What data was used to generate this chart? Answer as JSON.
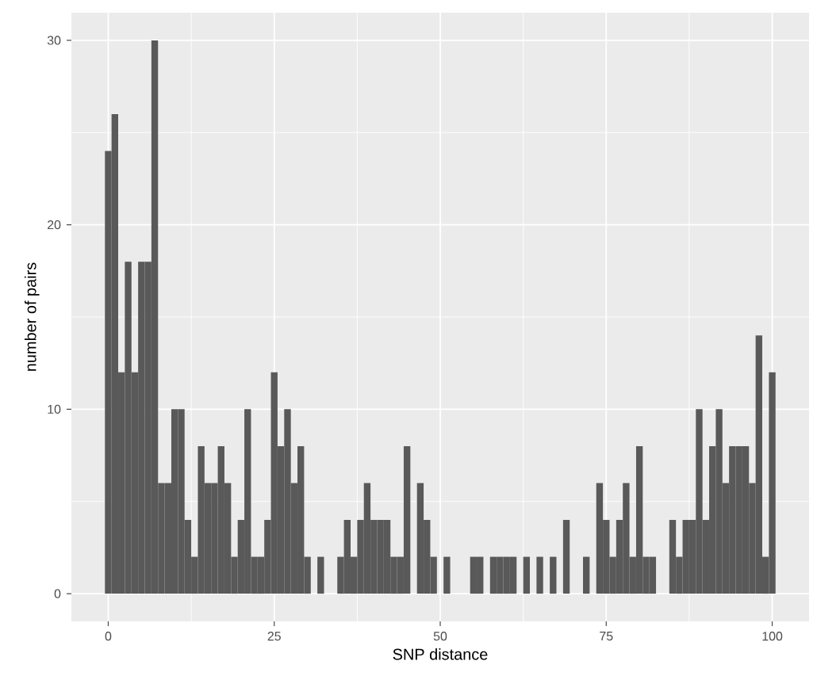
{
  "chart_data": {
    "type": "histogram",
    "xlabel": "SNP distance",
    "ylabel": "number of pairs",
    "bins": [
      -0.5,
      0.5,
      1.5,
      2.5,
      3.5,
      4.5,
      5.5,
      6.5,
      7.5,
      8.5,
      9.5,
      10.5,
      11.5,
      12.5,
      13.5,
      14.5,
      15.5,
      16.5,
      17.5,
      18.5,
      19.5,
      20.5,
      21.5,
      22.5,
      23.5,
      24.5,
      25.5,
      26.5,
      27.5,
      28.5,
      29.5,
      30.5,
      31.5,
      32.5,
      33.5,
      34.5,
      35.5,
      36.5,
      37.5,
      38.5,
      39.5,
      40.5,
      41.5,
      42.5,
      43.5,
      44.5,
      45.5,
      46.5,
      47.5,
      48.5,
      49.5,
      50.5,
      51.5,
      52.5,
      53.5,
      54.5,
      55.5,
      56.5,
      57.5,
      58.5,
      59.5,
      60.5,
      61.5,
      62.5,
      63.5,
      64.5,
      65.5,
      66.5,
      67.5,
      68.5,
      69.5,
      70.5,
      71.5,
      72.5,
      73.5,
      74.5,
      75.5,
      76.5,
      77.5,
      78.5,
      79.5,
      80.5,
      81.5,
      82.5,
      83.5,
      84.5,
      85.5,
      86.5,
      87.5,
      88.5,
      89.5,
      90.5,
      91.5,
      92.5,
      93.5,
      94.5,
      95.5,
      96.5,
      97.5,
      98.5,
      99.5,
      100.5
    ],
    "values": [
      24,
      26,
      12,
      18,
      12,
      18,
      18,
      30,
      6,
      6,
      10,
      10,
      4,
      2,
      8,
      6,
      6,
      8,
      6,
      2,
      4,
      10,
      2,
      2,
      4,
      12,
      8,
      10,
      6,
      8,
      2,
      0,
      2,
      0,
      0,
      2,
      4,
      2,
      4,
      6,
      4,
      4,
      4,
      2,
      2,
      8,
      0,
      6,
      4,
      2,
      0,
      2,
      0,
      0,
      0,
      2,
      2,
      0,
      2,
      2,
      2,
      2,
      0,
      2,
      0,
      2,
      0,
      2,
      0,
      4,
      0,
      0,
      2,
      0,
      6,
      4,
      2,
      4,
      6,
      2,
      8,
      2,
      2,
      0,
      0,
      4,
      2,
      4,
      4,
      10,
      4,
      8,
      10,
      6,
      8,
      8,
      8,
      6,
      14,
      2,
      12
    ],
    "color": "#595959",
    "xlim": [
      -5.55,
      105.55
    ],
    "ylim": [
      -1.5,
      31.5
    ],
    "xticks": [
      0,
      25,
      50,
      75,
      100
    ],
    "yticks": [
      0,
      10,
      20,
      30
    ],
    "grid": true
  }
}
